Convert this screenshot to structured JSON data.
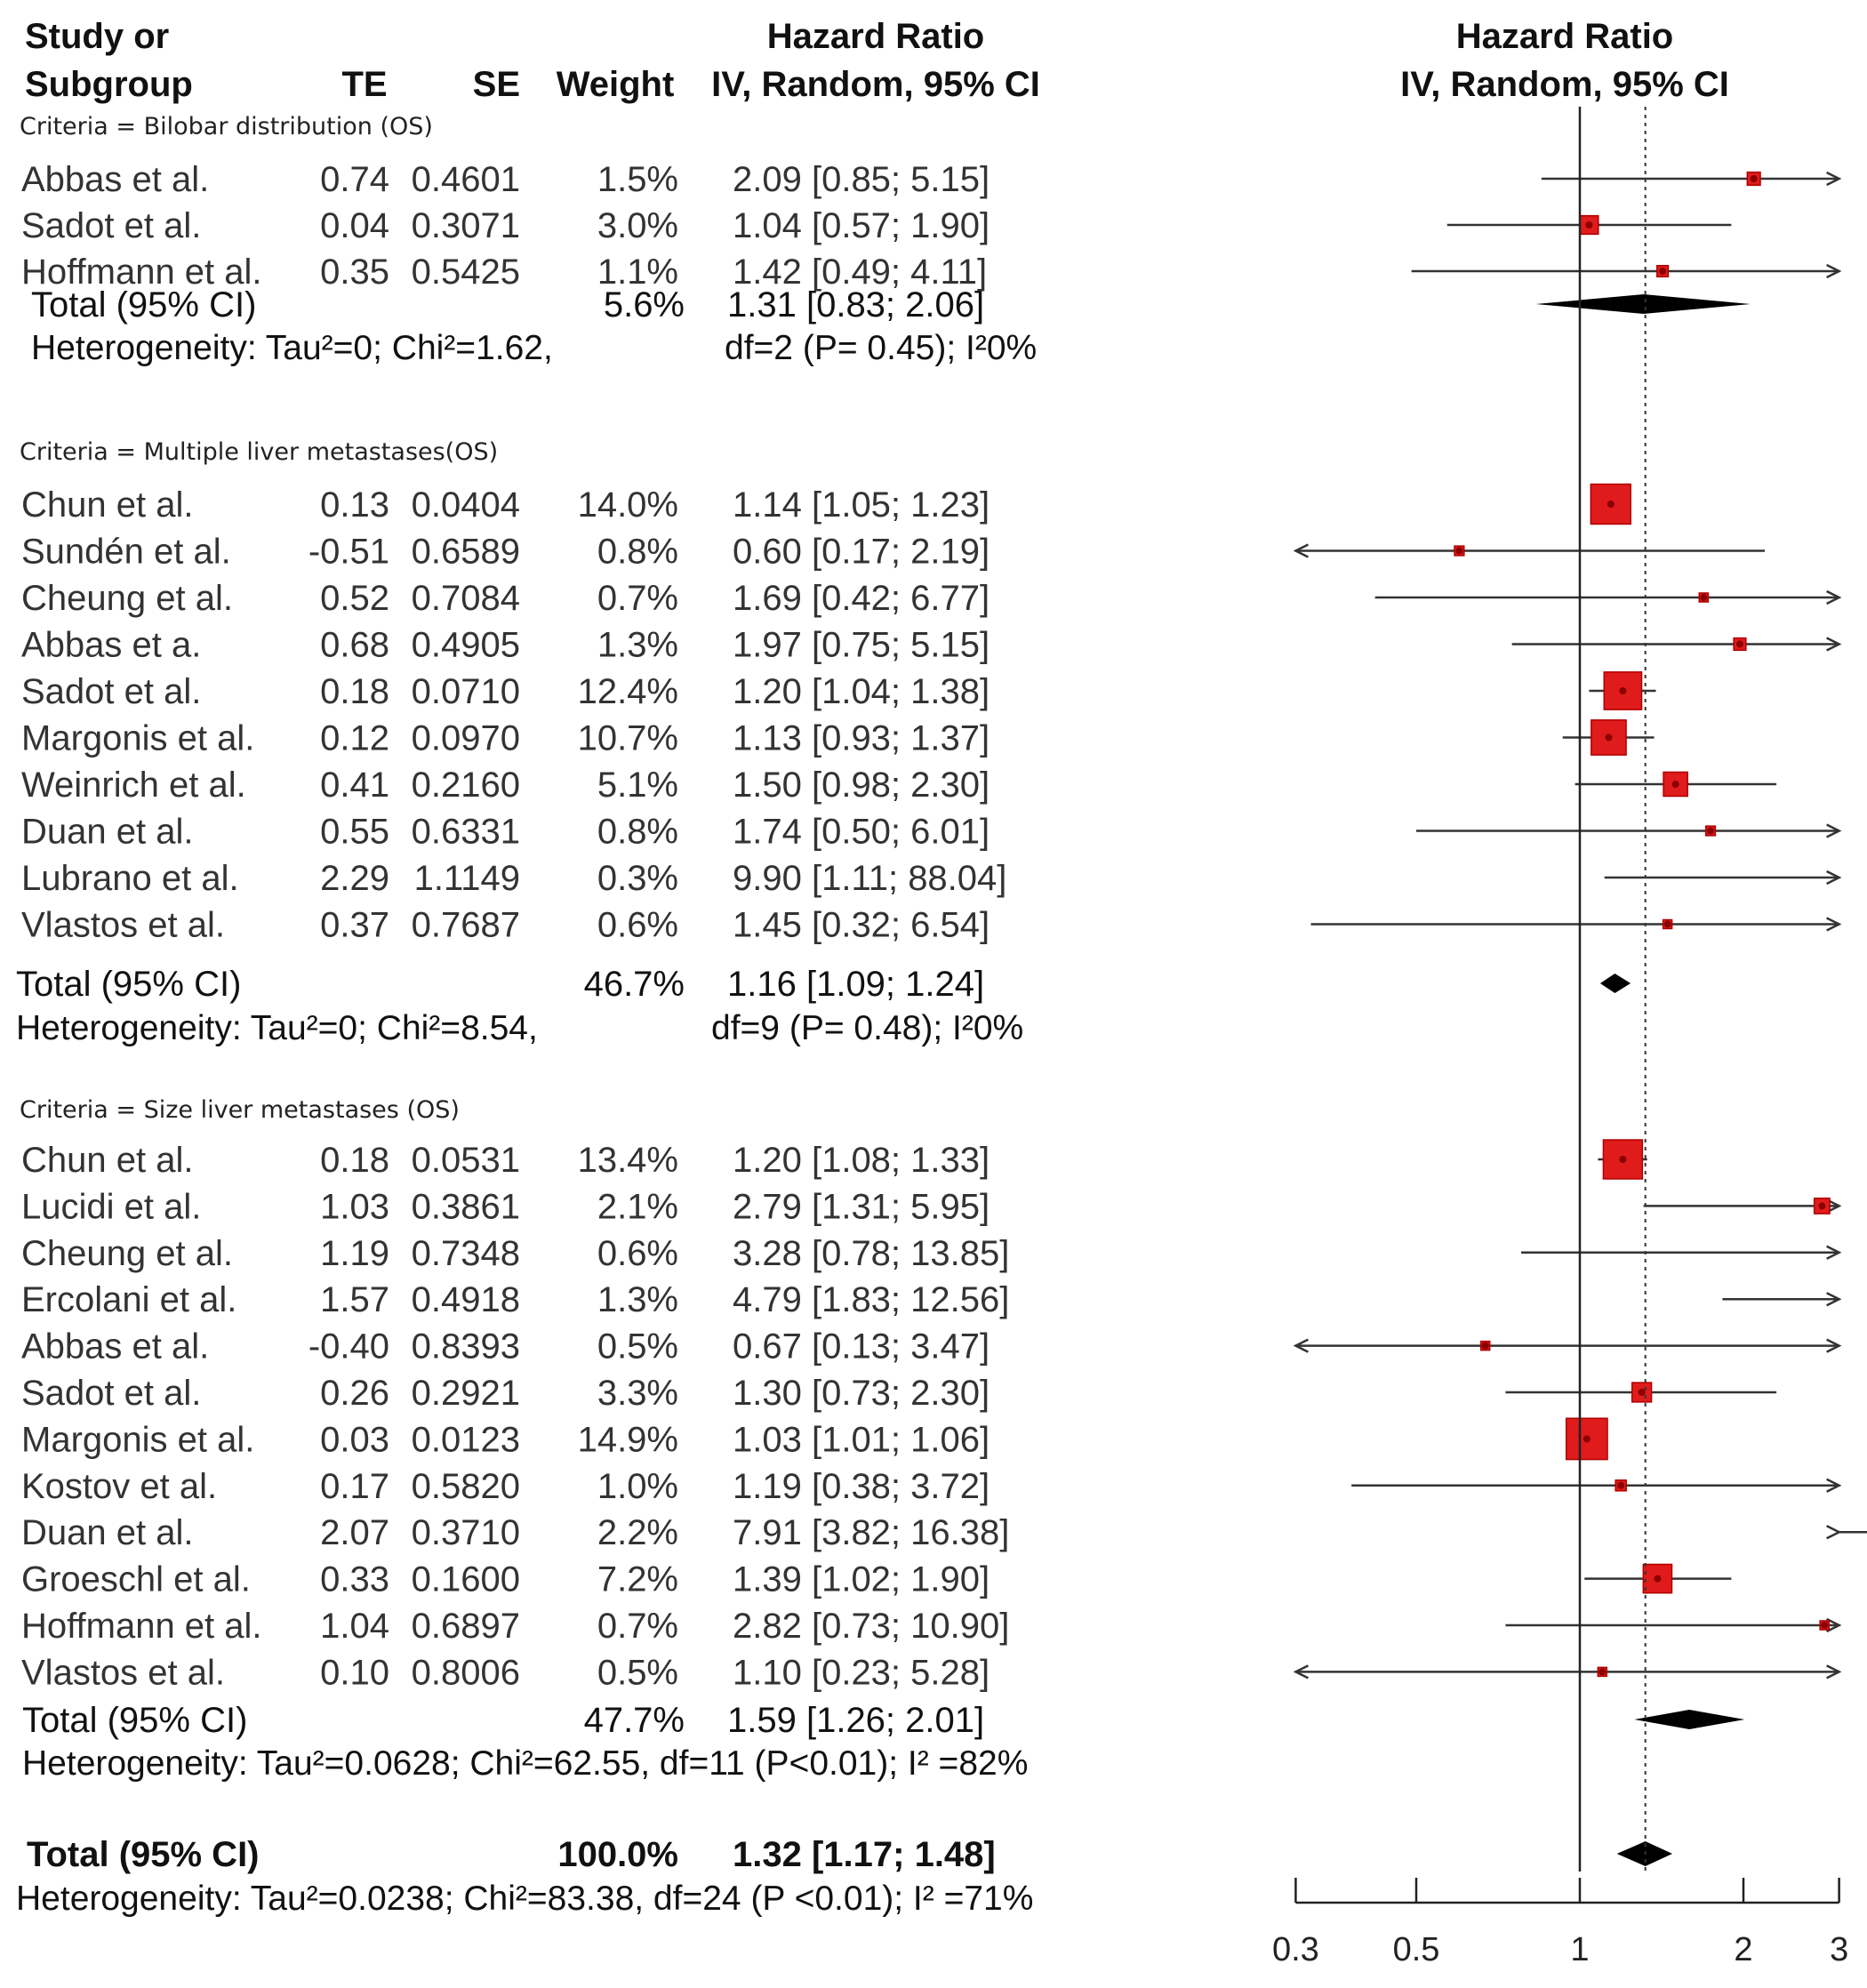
{
  "chart_data": {
    "type": "forest",
    "left_header": {
      "study_line1": "Study or",
      "study_line2": "Subgroup",
      "te": "TE",
      "se": "SE",
      "weight": "Weight",
      "hr_line1": "Hazard Ratio",
      "hr_line2": "IV, Random, 95% CI"
    },
    "right_header": {
      "line1": "Hazard Ratio",
      "line2": "IV, Random, 95% CI"
    },
    "x_axis": {
      "scale": "log",
      "range": [
        0.3,
        3
      ],
      "ticks": [
        0.3,
        0.5,
        1,
        2,
        3
      ],
      "tick_labels": [
        "0.3",
        "0.5",
        "1",
        "2",
        "3"
      ],
      "null_line": 1,
      "dotted_reference": 1.32
    },
    "groups": [
      {
        "label": "Criteria  = Bilobar  distribution   (OS)",
        "studies": [
          {
            "name": "Abbas et al.",
            "te": "0.74",
            "se": "0.4601",
            "weight": "1.5%",
            "weight_value": 1.5,
            "ci_text": "2.09 [0.85;  5.15]",
            "hr": 2.09,
            "lower": 0.85,
            "upper": 5.15
          },
          {
            "name": "Sadot et al.",
            "te": "0.04",
            "se": "0.3071",
            "weight": "3.0%",
            "weight_value": 3.0,
            "ci_text": "1.04 [0.57;  1.90]",
            "hr": 1.04,
            "lower": 0.57,
            "upper": 1.9
          },
          {
            "name": "Hoffmann et al.",
            "te": "0.35",
            "se": "0.5425",
            "weight": "1.1%",
            "weight_value": 1.1,
            "ci_text": "1.42 [0.49;  4.11]",
            "hr": 1.42,
            "lower": 0.49,
            "upper": 4.11
          }
        ],
        "total": {
          "label": "Total (95% CI)",
          "weight": "5.6%",
          "ci_text": "1.31 [0.83;  2.06]",
          "hr": 1.31,
          "lower": 0.83,
          "upper": 2.06
        },
        "heterogeneity_a": "Heterogeneity: Tau²=0; Chi²=1.62,",
        "heterogeneity_b": "df=2 (P= 0.45); I²0%"
      },
      {
        "label": "Criteria  = Multiple  liver metastases(OS)",
        "studies": [
          {
            "name": "Chun et al.",
            "te": "0.13",
            "se": "0.0404",
            "weight": "14.0%",
            "weight_value": 14.0,
            "ci_text": "1.14 [1.05;  1.23]",
            "hr": 1.14,
            "lower": 1.05,
            "upper": 1.23
          },
          {
            "name": "Sundén et al.",
            "te": "-0.51",
            "se": "0.6589",
            "weight": "0.8%",
            "weight_value": 0.8,
            "ci_text": "0.60 [0.17;  2.19]",
            "hr": 0.6,
            "lower": 0.17,
            "upper": 2.19
          },
          {
            "name": "Cheung et al.",
            "te": "0.52",
            "se": "0.7084",
            "weight": "0.7%",
            "weight_value": 0.7,
            "ci_text": "1.69 [0.42;  6.77]",
            "hr": 1.69,
            "lower": 0.42,
            "upper": 6.77
          },
          {
            "name": "Abbas et a.",
            "te": "0.68",
            "se": "0.4905",
            "weight": "1.3%",
            "weight_value": 1.3,
            "ci_text": "1.97 [0.75;  5.15]",
            "hr": 1.97,
            "lower": 0.75,
            "upper": 5.15
          },
          {
            "name": "Sadot et al.",
            "te": "0.18",
            "se": "0.0710",
            "weight": "12.4%",
            "weight_value": 12.4,
            "ci_text": "1.20 [1.04;  1.38]",
            "hr": 1.2,
            "lower": 1.04,
            "upper": 1.38
          },
          {
            "name": "Margonis et al.",
            "te": "0.12",
            "se": "0.0970",
            "weight": "10.7%",
            "weight_value": 10.7,
            "ci_text": "1.13 [0.93;  1.37]",
            "hr": 1.13,
            "lower": 0.93,
            "upper": 1.37
          },
          {
            "name": "Weinrich et al.",
            "te": "0.41",
            "se": "0.2160",
            "weight": "5.1%",
            "weight_value": 5.1,
            "ci_text": "1.50 [0.98;  2.30]",
            "hr": 1.5,
            "lower": 0.98,
            "upper": 2.3
          },
          {
            "name": "Duan et al.",
            "te": "0.55",
            "se": "0.6331",
            "weight": "0.8%",
            "weight_value": 0.8,
            "ci_text": "1.74 [0.50;  6.01]",
            "hr": 1.74,
            "lower": 0.5,
            "upper": 6.01
          },
          {
            "name": "Lubrano et al.",
            "te": "2.29",
            "se": "1.1149",
            "weight": "0.3%",
            "weight_value": 0.3,
            "ci_text": "9.90 [1.11; 88.04]",
            "hr": 9.9,
            "lower": 1.11,
            "upper": 88.04
          },
          {
            "name": "Vlastos et al.",
            "te": "0.37",
            "se": "0.7687",
            "weight": "0.6%",
            "weight_value": 0.6,
            "ci_text": "1.45 [0.32;  6.54]",
            "hr": 1.45,
            "lower": 0.32,
            "upper": 6.54
          }
        ],
        "total": {
          "label": "Total (95% CI)",
          "weight": "46.7%",
          "ci_text": "1.16 [1.09; 1.24]",
          "hr": 1.16,
          "lower": 1.09,
          "upper": 1.24
        },
        "heterogeneity_a": "Heterogeneity: Tau²=0; Chi²=8.54,",
        "heterogeneity_b": "df=9 (P= 0.48); I²0%"
      },
      {
        "label": "Criteria  = Size liver metastases  (OS)",
        "studies": [
          {
            "name": "Chun et al.",
            "te": "0.18",
            "se": "0.0531",
            "weight": "13.4%",
            "weight_value": 13.4,
            "ci_text": "1.20 [1.08;  1.33]",
            "hr": 1.2,
            "lower": 1.08,
            "upper": 1.33
          },
          {
            "name": "Lucidi et al.",
            "te": "1.03",
            "se": "0.3861",
            "weight": "2.1%",
            "weight_value": 2.1,
            "ci_text": "2.79 [1.31;  5.95]",
            "hr": 2.79,
            "lower": 1.31,
            "upper": 5.95
          },
          {
            "name": "Cheung et al.",
            "te": "1.19",
            "se": "0.7348",
            "weight": "0.6%",
            "weight_value": 0.6,
            "ci_text": "3.28 [0.78; 13.85]",
            "hr": 3.28,
            "lower": 0.78,
            "upper": 13.85
          },
          {
            "name": "Ercolani et al.",
            "te": "1.57",
            "se": "0.4918",
            "weight": "1.3%",
            "weight_value": 1.3,
            "ci_text": "4.79 [1.83; 12.56]",
            "hr": 4.79,
            "lower": 1.83,
            "upper": 12.56
          },
          {
            "name": "Abbas et al.",
            "te": "-0.40",
            "se": "0.8393",
            "weight": "0.5%",
            "weight_value": 0.5,
            "ci_text": "0.67 [0.13;  3.47]",
            "hr": 0.67,
            "lower": 0.13,
            "upper": 3.47
          },
          {
            "name": "Sadot et al.",
            "te": "0.26",
            "se": "0.2921",
            "weight": "3.3%",
            "weight_value": 3.3,
            "ci_text": "1.30 [0.73;  2.30]",
            "hr": 1.3,
            "lower": 0.73,
            "upper": 2.3
          },
          {
            "name": "Margonis et al.",
            "te": "0.03",
            "se": "0.0123",
            "weight": "14.9%",
            "weight_value": 14.9,
            "ci_text": "1.03 [1.01;  1.06]",
            "hr": 1.03,
            "lower": 1.01,
            "upper": 1.06
          },
          {
            "name": "Kostov et al.",
            "te": "0.17",
            "se": "0.5820",
            "weight": "1.0%",
            "weight_value": 1.0,
            "ci_text": "1.19 [0.38;  3.72]",
            "hr": 1.19,
            "lower": 0.38,
            "upper": 3.72
          },
          {
            "name": "Duan et al.",
            "te": "2.07",
            "se": "0.3710",
            "weight": "2.2%",
            "weight_value": 2.2,
            "ci_text": "7.91 [3.82; 16.38]",
            "hr": 7.91,
            "lower": 3.82,
            "upper": 16.38
          },
          {
            "name": "Groeschl et al.",
            "te": "0.33",
            "se": "0.1600",
            "weight": "7.2%",
            "weight_value": 7.2,
            "ci_text": "1.39 [1.02;  1.90]",
            "hr": 1.39,
            "lower": 1.02,
            "upper": 1.9
          },
          {
            "name": "Hoffmann et al.",
            "te": "1.04",
            "se": "0.6897",
            "weight": "0.7%",
            "weight_value": 0.7,
            "ci_text": "2.82 [0.73; 10.90]",
            "hr": 2.82,
            "lower": 0.73,
            "upper": 10.9
          },
          {
            "name": "Vlastos et al.",
            "te": "0.10",
            "se": "0.8006",
            "weight": "0.5%",
            "weight_value": 0.5,
            "ci_text": "1.10 [0.23;  5.28]",
            "hr": 1.1,
            "lower": 0.23,
            "upper": 5.28
          }
        ],
        "total": {
          "label": "Total (95% CI)",
          "weight": "47.7%",
          "ci_text": "1.59 [1.26;  2.01]",
          "hr": 1.59,
          "lower": 1.26,
          "upper": 2.01
        },
        "heterogeneity_a": "Heterogeneity: Tau²=0.0628; Chi²=62.55, df=11 (P<0.01); I² =82%",
        "heterogeneity_b": ""
      }
    ],
    "overall": {
      "label": "Total (95% CI)",
      "weight": "100.0%",
      "ci_text": "1.32 [1.17;  1.48]",
      "hr": 1.32,
      "lower": 1.17,
      "upper": 1.48,
      "heterogeneity": "Heterogeneity: Tau²=0.0238; Chi²=83.38, df=24 (P <0.01); I² =71%"
    },
    "colors": {
      "box": "#e01b1b",
      "box_edge": "#b00000",
      "point": "#8b0000",
      "line": "#333333",
      "diamond": "#000000",
      "text": "#1a1a1a"
    }
  }
}
